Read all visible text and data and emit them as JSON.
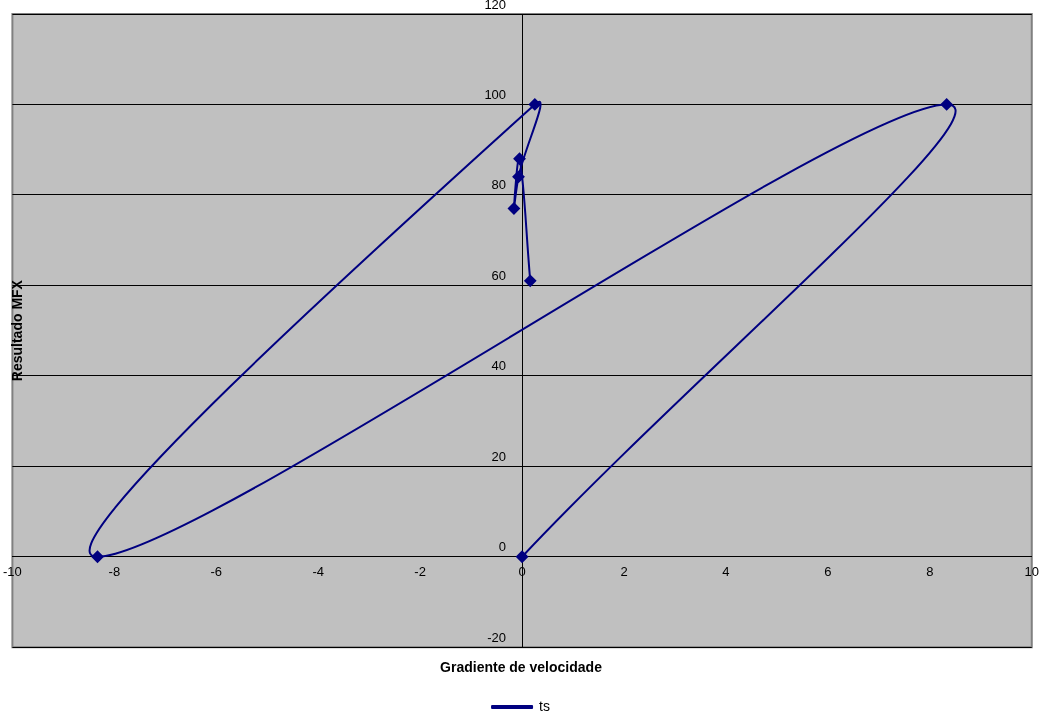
{
  "chart_data": {
    "type": "line",
    "xlabel": "Gradiente de velocidade",
    "ylabel": "Resultado MFX",
    "x": [
      0,
      8.33,
      -8.33,
      0.25,
      -0.07,
      -0.16,
      -0.05,
      0.16
    ],
    "series": [
      {
        "name": "ts",
        "color": "#000080",
        "values": [
          0,
          100,
          0,
          100,
          84,
          77,
          88,
          61
        ]
      }
    ],
    "xlim": [
      -10,
      10
    ],
    "xticks": [
      -10,
      -8,
      -6,
      -4,
      -2,
      0,
      2,
      4,
      6,
      8,
      10
    ],
    "ylim": [
      -20,
      120
    ],
    "yticks": [
      -20,
      0,
      20,
      40,
      60,
      80,
      100,
      120
    ],
    "grid": "y",
    "legend": "bottom",
    "marker": "diamond",
    "line_style": "solid"
  }
}
